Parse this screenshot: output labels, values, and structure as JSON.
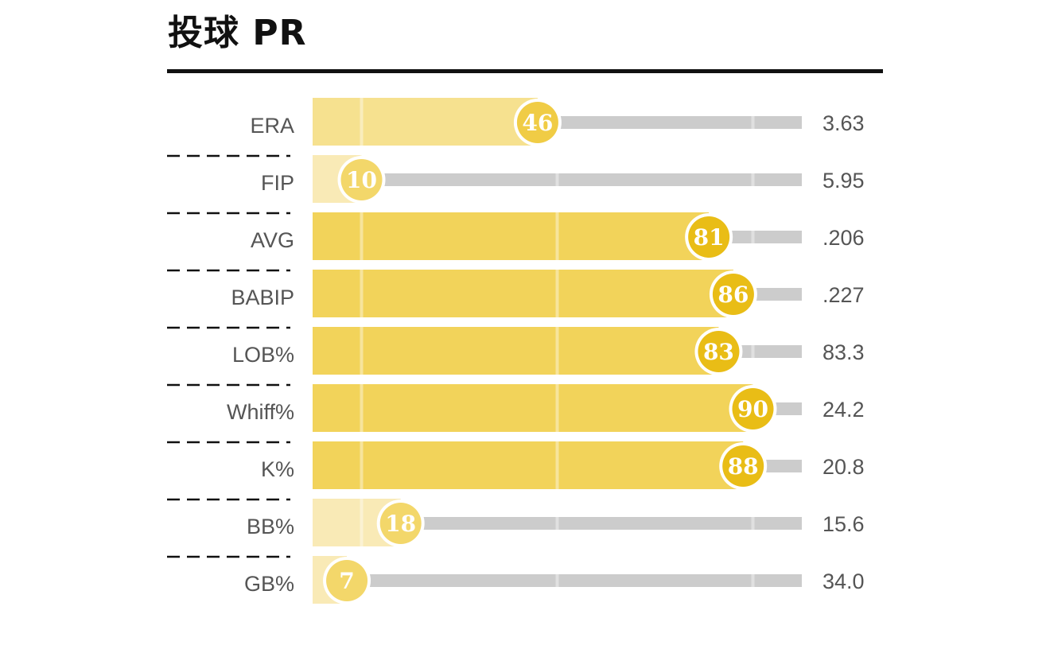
{
  "title": "投球 PR",
  "chart_data": {
    "type": "bar",
    "title": "投球 PR",
    "xlim": [
      0,
      100
    ],
    "categories": [
      "ERA",
      "FIP",
      "AVG",
      "BABIP",
      "LOB%",
      "Whiff%",
      "K%",
      "BB%",
      "GB%"
    ],
    "percentiles": [
      46,
      10,
      81,
      86,
      83,
      90,
      88,
      18,
      7
    ],
    "stat_values": [
      "3.63",
      "5.95",
      ".206",
      ".227",
      "83.3",
      "24.2",
      "20.8",
      "15.6",
      "34.0"
    ],
    "reference_lines": [
      10,
      50,
      90
    ],
    "colors": {
      "bar_high": "#f2d35a",
      "bar_mid": "#f6e18f",
      "bar_low": "#f9eab6",
      "badge_high": "#e9bd16",
      "badge_mid": "#f0cc45",
      "badge_low": "#f3d76a",
      "track": "#cccccc"
    }
  }
}
